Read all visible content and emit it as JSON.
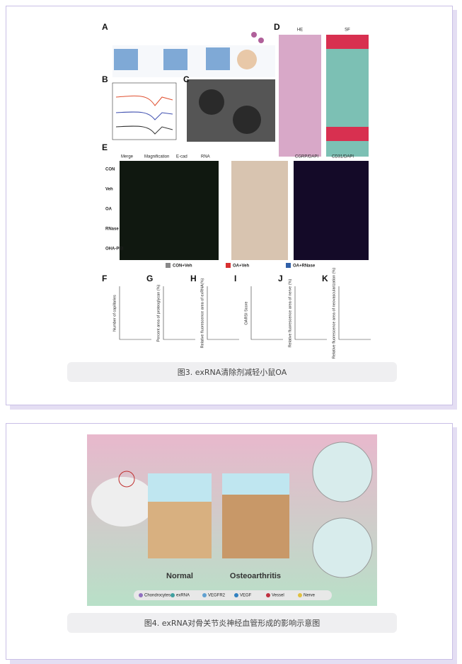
{
  "figures": [
    {
      "panel_letters": [
        "A",
        "B",
        "C",
        "D",
        "E",
        "F",
        "G",
        "H",
        "I",
        "J",
        "K"
      ],
      "stain_headers": [
        "HE",
        "SF"
      ],
      "row_labels": [
        "CON",
        "Veh",
        "OA",
        "RNase",
        "OHA-PEI"
      ],
      "e_headers": [
        "Merge",
        "Magnification",
        "E-cad",
        "RNA",
        "CGRP/DAPI",
        "CD31/DAPI"
      ],
      "legend": [
        "CON+Veh",
        "OA+Veh",
        "OA+RNase"
      ],
      "axis_titles": [
        "Number of capillaries",
        "Percent area of proteoglycan (%)",
        "Relative fluorescence area of exRNA(%)",
        "OARSI Score",
        "Relative fluorescence area of nerve (%)",
        "Relative fluorescence area of neovascularization (%)"
      ],
      "caption": "图3. exRNA清除剂减轻小鼠OA"
    },
    {
      "labels": [
        "Normal",
        "Osteoarthritis"
      ],
      "legend": [
        "Chondrocytes",
        "exRNA",
        "VEGFR2",
        "VEGF",
        "Vessel",
        "Nerve"
      ],
      "caption": "图4. exRNA对骨关节炎神经血管形成的影响示意图"
    }
  ]
}
